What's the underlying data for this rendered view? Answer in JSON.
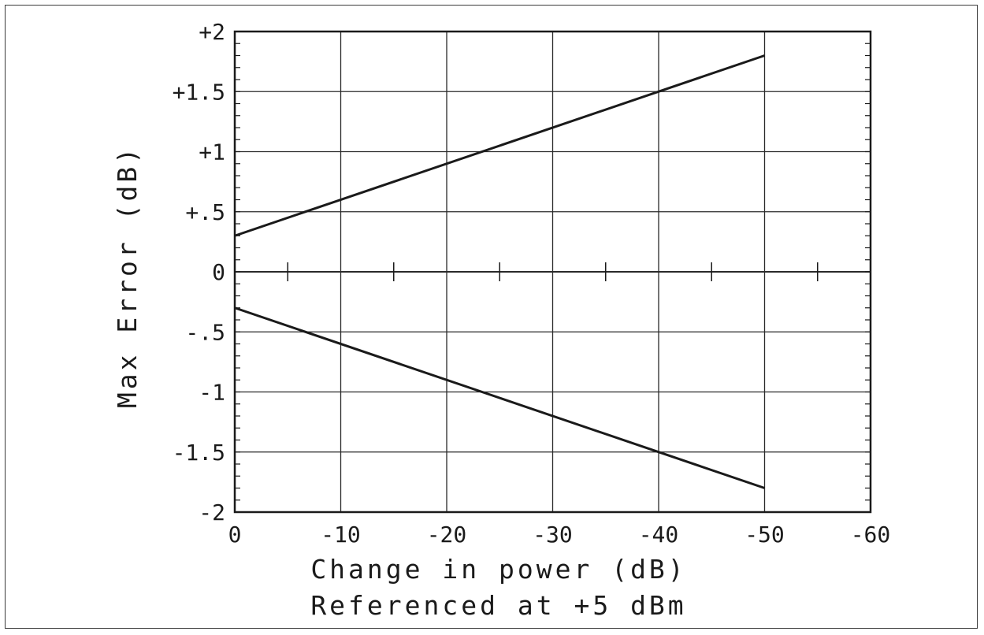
{
  "chart_data": {
    "type": "line",
    "xlabel": "Change in power (dB)",
    "xlabel2": "Referenced at +5 dBm",
    "ylabel": "Max Error (dB)",
    "xlim": [
      0,
      -60
    ],
    "ylim": [
      -2,
      2
    ],
    "grid": true,
    "x_ticks": [
      0,
      -10,
      -20,
      -30,
      -40,
      -50,
      -60
    ],
    "x_tick_labels": [
      "0",
      "-10",
      "-20",
      "-30",
      "-40",
      "-50",
      "-60"
    ],
    "y_ticks": [
      2,
      1.5,
      1,
      0.5,
      0,
      -0.5,
      -1,
      -1.5,
      -2
    ],
    "y_tick_labels": [
      "+2",
      "+1.5",
      "+1",
      "+.5",
      "0",
      "-.5",
      "-1",
      "-1.5",
      "-2"
    ],
    "series": [
      {
        "x": [
          0,
          -50
        ],
        "y": [
          0.3,
          1.8
        ]
      },
      {
        "x": [
          0,
          -50
        ],
        "y": [
          -0.3,
          -1.8
        ]
      }
    ]
  }
}
